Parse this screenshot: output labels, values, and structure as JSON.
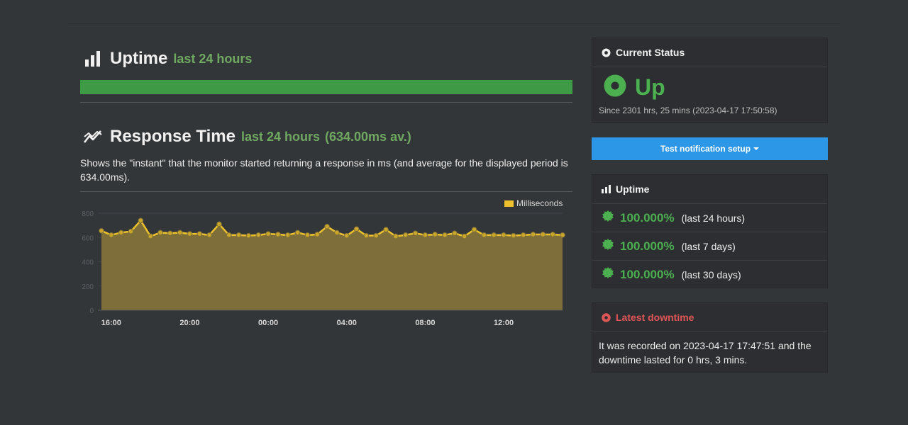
{
  "uptime_section": {
    "title": "Uptime",
    "subtitle": "last 24 hours",
    "bar_uptime_fraction": 1.0,
    "bar_color": "#3f9a45"
  },
  "response_section": {
    "title": "Response Time",
    "subtitle": "last 24 hours",
    "average": "(634.00ms av.)",
    "description": "Shows the \"instant\" that the monitor started returning a response in ms (and average for the displayed period is 634.00ms)."
  },
  "chart_data": {
    "type": "area",
    "legend": "Milliseconds",
    "legend_position": "top-right",
    "fill_color": "#7e6f3a",
    "line_color": "#ecc12c",
    "ylim": [
      0,
      800
    ],
    "y_ticks": [
      "0",
      "200",
      "400",
      "600",
      "800"
    ],
    "x_tick_labels": [
      {
        "label": "16:00",
        "index": 1
      },
      {
        "label": "20:00",
        "index": 9
      },
      {
        "label": "00:00",
        "index": 17
      },
      {
        "label": "04:00",
        "index": 25
      },
      {
        "label": "08:00",
        "index": 33
      },
      {
        "label": "12:00",
        "index": 41
      }
    ],
    "grid": true,
    "values": [
      655,
      620,
      640,
      650,
      740,
      610,
      640,
      635,
      640,
      630,
      630,
      620,
      710,
      620,
      620,
      615,
      620,
      630,
      625,
      620,
      640,
      620,
      625,
      690,
      640,
      615,
      670,
      615,
      615,
      665,
      610,
      620,
      635,
      620,
      625,
      620,
      635,
      610,
      665,
      620,
      620,
      620,
      615,
      620,
      625,
      625,
      625,
      620
    ]
  },
  "current_status": {
    "header": "Current Status",
    "status": "Up",
    "since": "Since 2301 hrs, 25 mins (2023-04-17 17:50:58)"
  },
  "notify_button": {
    "label": "Test notification setup"
  },
  "uptime_panel": {
    "header": "Uptime",
    "rows": [
      {
        "pct": "100.000%",
        "period": "(last 24 hours)"
      },
      {
        "pct": "100.000%",
        "period": "(last 7 days)"
      },
      {
        "pct": "100.000%",
        "period": "(last 30 days)"
      }
    ]
  },
  "downtime_panel": {
    "header": "Latest downtime",
    "text": "It was recorded on 2023-04-17 17:47:51 and the downtime lasted for 0 hrs, 3 mins."
  },
  "colors": {
    "accent_green": "#4caf50",
    "accent_red": "#e05656",
    "button_blue": "#2b97e6",
    "background": "#333639"
  }
}
